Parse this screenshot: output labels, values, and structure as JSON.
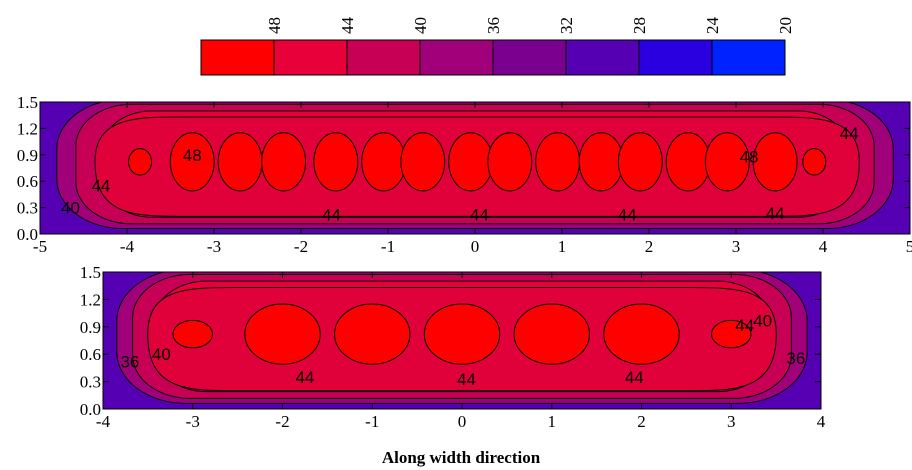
{
  "figure": {
    "xlabel": "Along width direction"
  },
  "legend": {
    "levels": [
      "48",
      "44",
      "40",
      "36",
      "32",
      "28",
      "24",
      "20"
    ],
    "colors": [
      "#ff0000",
      "#e8003a",
      "#c70055",
      "#a0007a",
      "#7a0090",
      "#5500b3",
      "#2a00e0",
      "#0022ff"
    ]
  },
  "chart_data": [
    {
      "type": "heatmap",
      "subtype": "contour",
      "name": "top-panel",
      "xlim": [
        -5,
        5
      ],
      "ylim": [
        0,
        1.5
      ],
      "x_ticks": [
        -5,
        -4,
        -3,
        -2,
        -1,
        0,
        1,
        2,
        3,
        4,
        5
      ],
      "y_ticks": [
        0.0,
        0.3,
        0.6,
        0.9,
        1.2,
        1.5
      ],
      "x_tick_labels": [
        "-5",
        "-4",
        "-3",
        "-2",
        "-1",
        "0",
        "1",
        "2",
        "3",
        "4",
        "5"
      ],
      "y_tick_labels": [
        "0.0",
        "0.3",
        "0.6",
        "0.9",
        "1.2",
        "1.5"
      ],
      "contour_levels": [
        48,
        44,
        40,
        36,
        32,
        28,
        24,
        20
      ],
      "contour_labels": [
        {
          "text": "48",
          "x": -3.25,
          "y": 0.9
        },
        {
          "text": "48",
          "x": 3.15,
          "y": 0.88
        },
        {
          "text": "44",
          "x": -4.3,
          "y": 0.55
        },
        {
          "text": "40",
          "x": -4.65,
          "y": 0.3
        },
        {
          "text": "44",
          "x": -1.65,
          "y": 0.22
        },
        {
          "text": "44",
          "x": 0.05,
          "y": 0.22
        },
        {
          "text": "44",
          "x": 1.75,
          "y": 0.22
        },
        {
          "text": "44",
          "x": 3.45,
          "y": 0.24
        },
        {
          "text": "44",
          "x": 4.3,
          "y": 1.15
        }
      ],
      "hot_spots_x": [
        -3.85,
        -3.25,
        -2.7,
        -2.2,
        -1.6,
        -1.05,
        -0.6,
        -0.05,
        0.4,
        0.95,
        1.45,
        1.9,
        2.45,
        2.9,
        3.45,
        3.9
      ],
      "hot_spots_y": 0.82
    },
    {
      "type": "heatmap",
      "subtype": "contour",
      "name": "bottom-panel",
      "xlim": [
        -4,
        4
      ],
      "ylim": [
        0,
        1.5
      ],
      "x_ticks": [
        -4,
        -3,
        -2,
        -1,
        0,
        1,
        2,
        3,
        4
      ],
      "y_ticks": [
        0.0,
        0.3,
        0.6,
        0.9,
        1.2,
        1.5
      ],
      "x_tick_labels": [
        "-4",
        "-3",
        "-2",
        "-1",
        "0",
        "1",
        "2",
        "3",
        "4"
      ],
      "y_tick_labels": [
        "0.0",
        "0.3",
        "0.6",
        "0.9",
        "1.2",
        "1.5"
      ],
      "xlabel": "Along width direction",
      "contour_levels": [
        48,
        44,
        40,
        36,
        32,
        28,
        24,
        20
      ],
      "contour_labels": [
        {
          "text": "36",
          "x": -3.7,
          "y": 0.52
        },
        {
          "text": "40",
          "x": -3.35,
          "y": 0.6
        },
        {
          "text": "44",
          "x": -1.75,
          "y": 0.35
        },
        {
          "text": "44",
          "x": 0.05,
          "y": 0.33
        },
        {
          "text": "44",
          "x": 1.92,
          "y": 0.35
        },
        {
          "text": "44",
          "x": 3.15,
          "y": 0.92
        },
        {
          "text": "40",
          "x": 3.35,
          "y": 0.97
        },
        {
          "text": "36",
          "x": 3.72,
          "y": 0.56
        }
      ],
      "hot_spots_x": [
        -3.0,
        -2.0,
        -1.0,
        0.0,
        1.0,
        2.0,
        3.0
      ],
      "hot_spots_y": 0.82
    }
  ]
}
